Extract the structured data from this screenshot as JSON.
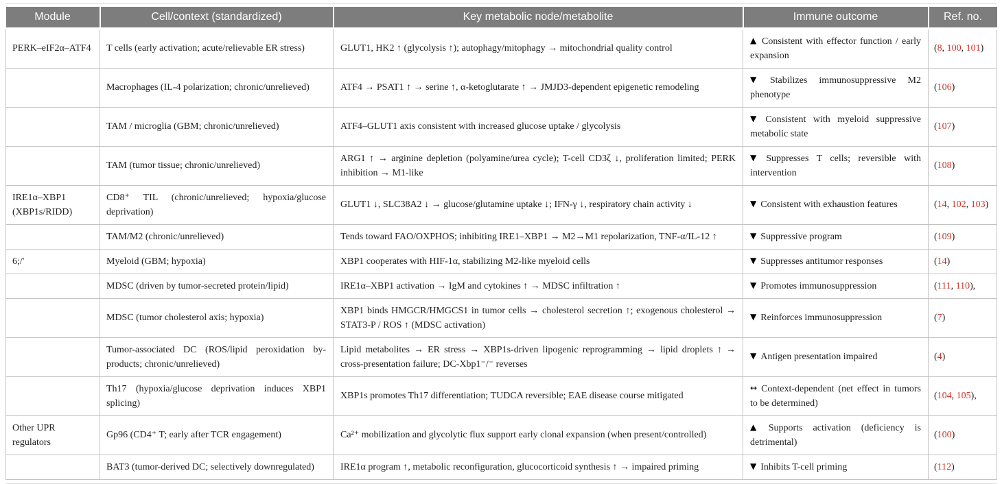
{
  "colors": {
    "header_bg": "#7d7d7d",
    "header_text": "#ffffff",
    "ref_link": "#c5392b",
    "body_text": "#222222",
    "grid_line": "#c3c3c3",
    "page_bg": "#ffffff"
  },
  "table": {
    "headers": [
      "Module",
      "Cell/context (standardized)",
      "Key metabolic node/metabolite",
      "Immune outcome",
      "Ref. no."
    ],
    "rows": [
      {
        "module": "PERK–eIF2α–ATF4",
        "cell_context": "T cells (early activation; acute/relievable ER stress)",
        "metabolic_node": "GLUT1, HK2 ↑ (glycolysis ↑); autophagy/mitophagy → mitochondrial quality control",
        "outcome": {
          "icon": "▲",
          "icon_name": "up-triangle-icon",
          "label": "Consistent with effector function / early expansion"
        },
        "refs": [
          "8",
          "100",
          "101"
        ],
        "refs_suffix": ""
      },
      {
        "module": "",
        "cell_context": "Macrophages (IL-4 polarization; chronic/unrelieved)",
        "metabolic_node": "ATF4 → PSAT1 ↑ → serine ↑, α-ketoglutarate ↑ → JMJD3-dependent epigenetic remodeling",
        "outcome": {
          "icon": "▼",
          "icon_name": "down-triangle-icon",
          "label": "Stabilizes immunosuppressive M2 phenotype"
        },
        "refs": [
          "106"
        ],
        "refs_suffix": ""
      },
      {
        "module": "",
        "cell_context": "TAM / microglia (GBM; chronic/unrelieved)",
        "metabolic_node": "ATF4–GLUT1 axis consistent with increased glucose uptake / glycolysis",
        "outcome": {
          "icon": "▼",
          "icon_name": "down-triangle-icon",
          "label": "Consistent with myeloid suppressive metabolic state"
        },
        "refs": [
          "107"
        ],
        "refs_suffix": ""
      },
      {
        "module": "",
        "cell_context": "TAM (tumor tissue; chronic/unrelieved)",
        "metabolic_node": "ARG1 ↑ → arginine depletion (polyamine/urea cycle); T-cell CD3ζ ↓, proliferation limited; PERK inhibition → M1-like",
        "outcome": {
          "icon": "▼",
          "icon_name": "down-triangle-icon",
          "label": "Suppresses T cells; reversible with intervention"
        },
        "refs": [
          "108"
        ],
        "refs_suffix": ""
      },
      {
        "module": "IRE1α–XBP1 (XBP1s/RIDD)",
        "cell_context": "CD8⁺ TIL (chronic/unrelieved; hypoxia/glucose deprivation)",
        "metabolic_node": "GLUT1 ↓, SLC38A2 ↓ → glucose/glutamine uptake ↓; IFN-γ ↓, respiratory chain activity ↓",
        "outcome": {
          "icon": "▼",
          "icon_name": "down-triangle-icon",
          "label": "Consistent with exhaustion features"
        },
        "refs": [
          "14",
          "102",
          "103"
        ],
        "refs_suffix": ""
      },
      {
        "module": "",
        "cell_context": "TAM/M2 (chronic/unrelieved)",
        "metabolic_node": "Tends toward FAO/OXPHOS; inhibiting IRE1–XBP1 → M2→M1 repolarization, TNF-α/IL-12 ↑",
        "outcome": {
          "icon": "▼",
          "icon_name": "down-triangle-icon",
          "label": "Suppressive program"
        },
        "refs": [
          "109"
        ],
        "refs_suffix": ""
      },
      {
        "module": "6;/'",
        "cell_context": "Myeloid (GBM; hypoxia)",
        "metabolic_node": "XBP1 cooperates with HIF-1α, stabilizing M2-like myeloid cells",
        "outcome": {
          "icon": "▼",
          "icon_name": "down-triangle-icon",
          "label": "Suppresses antitumor responses"
        },
        "refs": [
          "14"
        ],
        "refs_suffix": ""
      },
      {
        "module": "",
        "cell_context": "MDSC (driven by tumor-secreted protein/lipid)",
        "metabolic_node": "IRE1α–XBP1 activation → IgM and cytokines ↑ → MDSC infiltration ↑",
        "outcome": {
          "icon": "▼",
          "icon_name": "down-triangle-icon",
          "label": "Promotes immunosuppression"
        },
        "refs": [
          "111",
          "110"
        ],
        "refs_suffix": ","
      },
      {
        "module": "",
        "cell_context": "MDSC (tumor cholesterol axis; hypoxia)",
        "metabolic_node": "XBP1 binds HMGCR/HMGCS1 in tumor cells → cholesterol secretion ↑; exogenous cholesterol → STAT3-P / ROS ↑ (MDSC activation)",
        "outcome": {
          "icon": "▼",
          "icon_name": "down-triangle-icon",
          "label": "Reinforces immunosuppression"
        },
        "refs": [
          "7"
        ],
        "refs_suffix": ""
      },
      {
        "module": "",
        "cell_context": "Tumor-associated DC (ROS/lipid peroxidation by-products; chronic/unrelieved)",
        "metabolic_node": "Lipid metabolites → ER stress → XBP1s-driven lipogenic reprogramming → lipid droplets ↑ → cross-presentation failure; DC-Xbp1⁻/⁻ reverses",
        "outcome": {
          "icon": "▼",
          "icon_name": "down-triangle-icon",
          "label": "Antigen presentation impaired"
        },
        "refs": [
          "4"
        ],
        "refs_suffix": ""
      },
      {
        "module": "",
        "cell_context": "Th17 (hypoxia/glucose deprivation induces XBP1 splicing)",
        "metabolic_node": "XBP1s promotes Th17 differentiation; TUDCA reversible; EAE disease course mitigated",
        "outcome": {
          "icon": "↔",
          "icon_name": "left-right-arrow-icon",
          "label": "Context-dependent (net effect in tumors to be determined)"
        },
        "refs": [
          "104",
          "105"
        ],
        "refs_suffix": ","
      },
      {
        "module": "Other UPR regulators",
        "cell_context": "Gp96 (CD4⁺ T; early after TCR engagement)",
        "metabolic_node": "Ca²⁺ mobilization and glycolytic flux support early clonal expansion (when present/controlled)",
        "outcome": {
          "icon": "▲",
          "icon_name": "up-triangle-icon",
          "label": "Supports activation (deficiency is detrimental)"
        },
        "refs": [
          "100"
        ],
        "refs_suffix": ""
      },
      {
        "module": "",
        "cell_context": "BAT3 (tumor-derived DC; selectively downregulated)",
        "metabolic_node": "IRE1α program ↑, metabolic reconfiguration, glucocorticoid synthesis ↑ → impaired priming",
        "outcome": {
          "icon": "▼",
          "icon_name": "down-triangle-icon",
          "label": "Inhibits T-cell priming"
        },
        "refs": [
          "112"
        ],
        "refs_suffix": ""
      }
    ]
  }
}
